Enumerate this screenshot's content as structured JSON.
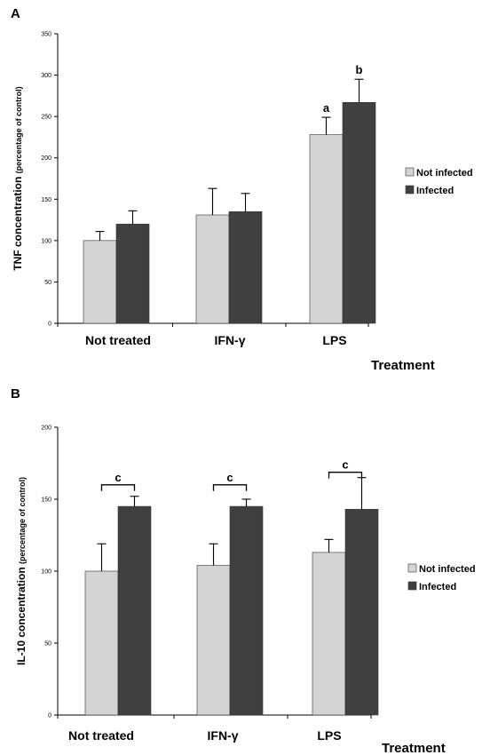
{
  "chart_data": [
    {
      "type": "bar",
      "panel_label": "A",
      "categories": [
        "Not treated",
        "IFN-γ",
        "LPS"
      ],
      "series": [
        {
          "name": "Not infected",
          "values": [
            100,
            131,
            228
          ],
          "errors": [
            11,
            32,
            21
          ]
        },
        {
          "name": "Infected",
          "values": [
            120,
            135,
            267
          ],
          "errors": [
            16,
            22,
            28
          ]
        }
      ],
      "ylabel_main": "TNF concentration",
      "ylabel_sub": "(percentage of control)",
      "xlabel": "Treatment",
      "ylim": [
        0,
        350
      ],
      "yticks": [
        0,
        50,
        100,
        150,
        200,
        250,
        300,
        350
      ],
      "grid": false,
      "legend": "right",
      "annotations": [
        {
          "text": "a",
          "category": "LPS",
          "series": "Not infected"
        },
        {
          "text": "b",
          "category": "LPS",
          "series": "Infected"
        }
      ],
      "colors": {
        "Not infected": "#d4d4d4",
        "Infected": "#404040"
      }
    },
    {
      "type": "bar",
      "panel_label": "B",
      "categories": [
        "Not treated",
        "IFN-γ",
        "LPS"
      ],
      "series": [
        {
          "name": "Not infected",
          "values": [
            100,
            104,
            113
          ],
          "errors": [
            19,
            15,
            9
          ]
        },
        {
          "name": "Infected",
          "values": [
            145,
            145,
            143
          ],
          "errors": [
            7,
            5,
            22
          ]
        }
      ],
      "ylabel_main": "IL-10 concentration",
      "ylabel_sub": "(percentage of control)",
      "xlabel": "Treatment",
      "ylim": [
        0,
        200
      ],
      "yticks": [
        0,
        50,
        100,
        150,
        200
      ],
      "grid": false,
      "legend": "right",
      "annotations": [
        {
          "text": "c",
          "category": "Not treated",
          "bracket": true
        },
        {
          "text": "c",
          "category": "IFN-γ",
          "bracket": true
        },
        {
          "text": "c",
          "category": "LPS",
          "bracket": true
        }
      ],
      "colors": {
        "Not infected": "#d4d4d4",
        "Infected": "#404040"
      }
    }
  ]
}
